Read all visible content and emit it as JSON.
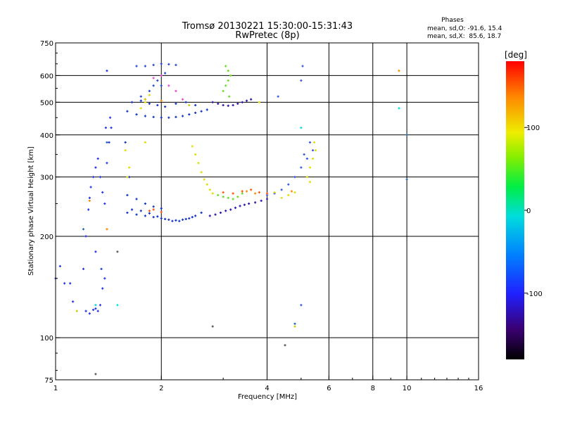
{
  "chart_data": {
    "type": "scatter",
    "title": "Tromsø 20130221 15:30:00-15:31:43",
    "subtitle": "RwPretec (8p)",
    "stats": {
      "heading": "Phases",
      "line1": "mean, sd,O: -91.6, 15.4",
      "line2": "mean, sd,X:  85.6, 18.7"
    },
    "xlabel": "Frequency [MHz]",
    "ylabel": "Stationary phase Virtual Height [km]",
    "x_scale": "log",
    "y_scale": "log",
    "xlim": [
      1,
      16
    ],
    "ylim": [
      75,
      750
    ],
    "x_ticks": [
      1,
      2,
      4,
      6,
      8,
      10,
      16
    ],
    "x_tick_labels": [
      "1",
      "2",
      "4",
      "6",
      "8",
      "10",
      "16"
    ],
    "y_ticks": [
      75,
      100,
      200,
      300,
      400,
      500,
      600,
      750
    ],
    "y_tick_labels": [
      "75",
      "100",
      "200",
      "300",
      "400",
      "500",
      "600",
      "750"
    ],
    "grid": true,
    "colorbar": {
      "label": "[deg]",
      "range": [
        -180,
        180
      ],
      "ticks": [
        100,
        0,
        -100
      ],
      "tick_labels": [
        "100",
        "0",
        "-100"
      ]
    },
    "series": [
      {
        "color": "#2233ee",
        "points": [
          [
            1.0,
            150
          ],
          [
            1.03,
            163
          ],
          [
            1.06,
            145
          ],
          [
            1.1,
            145
          ],
          [
            1.12,
            128
          ],
          [
            1.2,
            160
          ],
          [
            1.22,
            120
          ],
          [
            1.25,
            118
          ],
          [
            1.28,
            121
          ],
          [
            1.3,
            122
          ],
          [
            1.32,
            120
          ],
          [
            1.34,
            125
          ],
          [
            1.36,
            140
          ],
          [
            1.38,
            150
          ],
          [
            1.22,
            200
          ],
          [
            1.24,
            240
          ],
          [
            1.26,
            280
          ],
          [
            1.28,
            300
          ],
          [
            1.3,
            320
          ],
          [
            1.32,
            340
          ],
          [
            1.34,
            300
          ],
          [
            1.36,
            270
          ],
          [
            1.38,
            250
          ],
          [
            1.4,
            330
          ],
          [
            1.42,
            380
          ],
          [
            1.44,
            420
          ],
          [
            1.43,
            450
          ],
          [
            1.39,
            420
          ],
          [
            1.25,
            260
          ],
          [
            1.3,
            180
          ],
          [
            1.35,
            160
          ],
          [
            1.4,
            620
          ]
        ]
      },
      {
        "color": "#1133cc",
        "points": [
          [
            1.6,
            235
          ],
          [
            1.7,
            232
          ],
          [
            1.8,
            230
          ],
          [
            1.9,
            228
          ],
          [
            2.0,
            226
          ],
          [
            2.1,
            224
          ],
          [
            2.2,
            223
          ],
          [
            2.3,
            224
          ],
          [
            2.4,
            226
          ],
          [
            2.5,
            230
          ],
          [
            2.6,
            235
          ],
          [
            1.65,
            240
          ],
          [
            1.75,
            238
          ],
          [
            1.85,
            234
          ],
          [
            1.95,
            229
          ],
          [
            2.05,
            225
          ],
          [
            2.15,
            222
          ],
          [
            2.25,
            222
          ],
          [
            2.35,
            225
          ],
          [
            2.45,
            228
          ],
          [
            1.6,
            265
          ],
          [
            1.7,
            258
          ],
          [
            1.8,
            250
          ],
          [
            1.9,
            245
          ],
          [
            2.0,
            242
          ],
          [
            1.62,
            300
          ],
          [
            1.58,
            380
          ],
          [
            1.6,
            470
          ],
          [
            1.7,
            460
          ],
          [
            1.8,
            455
          ],
          [
            1.9,
            452
          ],
          [
            2.0,
            450
          ],
          [
            2.1,
            450
          ],
          [
            2.2,
            452
          ],
          [
            2.3,
            455
          ],
          [
            2.4,
            460
          ],
          [
            2.5,
            465
          ],
          [
            2.6,
            470
          ],
          [
            2.7,
            475
          ],
          [
            1.65,
            500
          ],
          [
            1.75,
            505
          ],
          [
            1.85,
            495
          ],
          [
            1.95,
            490
          ],
          [
            2.05,
            485
          ],
          [
            2.2,
            495
          ],
          [
            2.35,
            500
          ],
          [
            2.5,
            490
          ]
        ]
      },
      {
        "color": "#2244dd",
        "points": [
          [
            1.7,
            640
          ],
          [
            1.8,
            640
          ],
          [
            1.9,
            645
          ],
          [
            2.0,
            650
          ],
          [
            2.1,
            648
          ],
          [
            2.2,
            645
          ],
          [
            1.75,
            520
          ],
          [
            1.85,
            540
          ],
          [
            1.95,
            580
          ],
          [
            2.05,
            610
          ],
          [
            1.9,
            560
          ],
          [
            2.0,
            560
          ]
        ]
      },
      {
        "color": "#3311aa",
        "points": [
          [
            2.8,
            500
          ],
          [
            2.9,
            495
          ],
          [
            3.0,
            490
          ],
          [
            3.1,
            488
          ],
          [
            3.2,
            490
          ],
          [
            3.3,
            495
          ],
          [
            3.4,
            500
          ],
          [
            3.5,
            505
          ],
          [
            3.6,
            510
          ],
          [
            2.75,
            230
          ],
          [
            2.85,
            232
          ],
          [
            2.95,
            235
          ],
          [
            3.05,
            238
          ],
          [
            3.15,
            240
          ],
          [
            3.25,
            243
          ],
          [
            3.35,
            246
          ],
          [
            3.45,
            248
          ],
          [
            3.55,
            250
          ],
          [
            3.7,
            252
          ],
          [
            3.85,
            255
          ],
          [
            4.0,
            258
          ]
        ]
      },
      {
        "color": "#3355ee",
        "points": [
          [
            4.0,
            265
          ],
          [
            4.2,
            268
          ],
          [
            4.4,
            275
          ],
          [
            4.6,
            285
          ],
          [
            4.8,
            300
          ],
          [
            5.0,
            320
          ],
          [
            5.2,
            340
          ],
          [
            5.4,
            360
          ],
          [
            5.1,
            350
          ],
          [
            5.3,
            380
          ],
          [
            4.3,
            520
          ],
          [
            5.0,
            580
          ],
          [
            5.05,
            640
          ],
          [
            5.0,
            125
          ]
        ]
      },
      {
        "color": "#dddd00",
        "points": [
          [
            2.45,
            370
          ],
          [
            2.5,
            350
          ],
          [
            2.55,
            330
          ],
          [
            2.6,
            310
          ],
          [
            2.65,
            295
          ],
          [
            2.7,
            285
          ],
          [
            2.75,
            275
          ],
          [
            2.8,
            268
          ],
          [
            1.6,
            300
          ],
          [
            1.62,
            320
          ],
          [
            1.58,
            360
          ],
          [
            1.8,
            380
          ],
          [
            1.75,
            480
          ],
          [
            1.8,
            500
          ],
          [
            1.85,
            525
          ],
          [
            5.3,
            320
          ],
          [
            5.4,
            340
          ],
          [
            5.5,
            360
          ],
          [
            5.45,
            380
          ],
          [
            5.2,
            300
          ],
          [
            5.3,
            290
          ],
          [
            4.2,
            270
          ],
          [
            4.4,
            260
          ],
          [
            4.6,
            265
          ],
          [
            4.8,
            270
          ],
          [
            3.8,
            500
          ]
        ]
      },
      {
        "color": "#66dd22",
        "points": [
          [
            3.0,
            540
          ],
          [
            3.05,
            560
          ],
          [
            3.1,
            580
          ],
          [
            3.15,
            600
          ],
          [
            3.1,
            620
          ],
          [
            3.05,
            640
          ],
          [
            3.12,
            520
          ],
          [
            2.9,
            265
          ],
          [
            3.0,
            262
          ],
          [
            3.1,
            260
          ],
          [
            3.2,
            258
          ],
          [
            3.3,
            262
          ],
          [
            3.4,
            268
          ]
        ]
      },
      {
        "color": "#ff5500",
        "points": [
          [
            3.0,
            270
          ],
          [
            3.2,
            268
          ],
          [
            3.4,
            272
          ],
          [
            3.6,
            275
          ],
          [
            3.8,
            270
          ],
          [
            4.0,
            268
          ],
          [
            1.9,
            240
          ],
          [
            2.0,
            236
          ],
          [
            1.85,
            238
          ]
        ]
      },
      {
        "color": "#ff8800",
        "points": [
          [
            1.25,
            255
          ],
          [
            1.4,
            210
          ],
          [
            1.8,
            510
          ],
          [
            2.0,
            505
          ],
          [
            3.5,
            272
          ],
          [
            3.7,
            268
          ],
          [
            4.7,
            272
          ],
          [
            9.5,
            620
          ]
        ]
      },
      {
        "color": "#00dddd",
        "points": [
          [
            1.3,
            125
          ],
          [
            1.5,
            125
          ],
          [
            5.0,
            420
          ],
          [
            9.5,
            480
          ]
        ]
      },
      {
        "color": "#ee44cc",
        "points": [
          [
            1.9,
            590
          ],
          [
            2.0,
            600
          ],
          [
            2.1,
            560
          ],
          [
            2.3,
            510
          ],
          [
            2.2,
            540
          ]
        ]
      },
      {
        "color": "#555555",
        "points": [
          [
            1.5,
            180
          ],
          [
            2.8,
            108
          ],
          [
            4.5,
            95
          ],
          [
            1.3,
            78
          ]
        ]
      },
      {
        "color": "#2266aa",
        "points": [
          [
            10.0,
            295
          ],
          [
            10.0,
            400
          ],
          [
            4.8,
            110
          ],
          [
            1.2,
            210
          ],
          [
            1.4,
            380
          ]
        ]
      },
      {
        "color": "#cccc00",
        "points": [
          [
            4.8,
            108
          ],
          [
            1.15,
            120
          ],
          [
            1.8,
            510
          ],
          [
            2.4,
            490
          ]
        ]
      }
    ]
  }
}
